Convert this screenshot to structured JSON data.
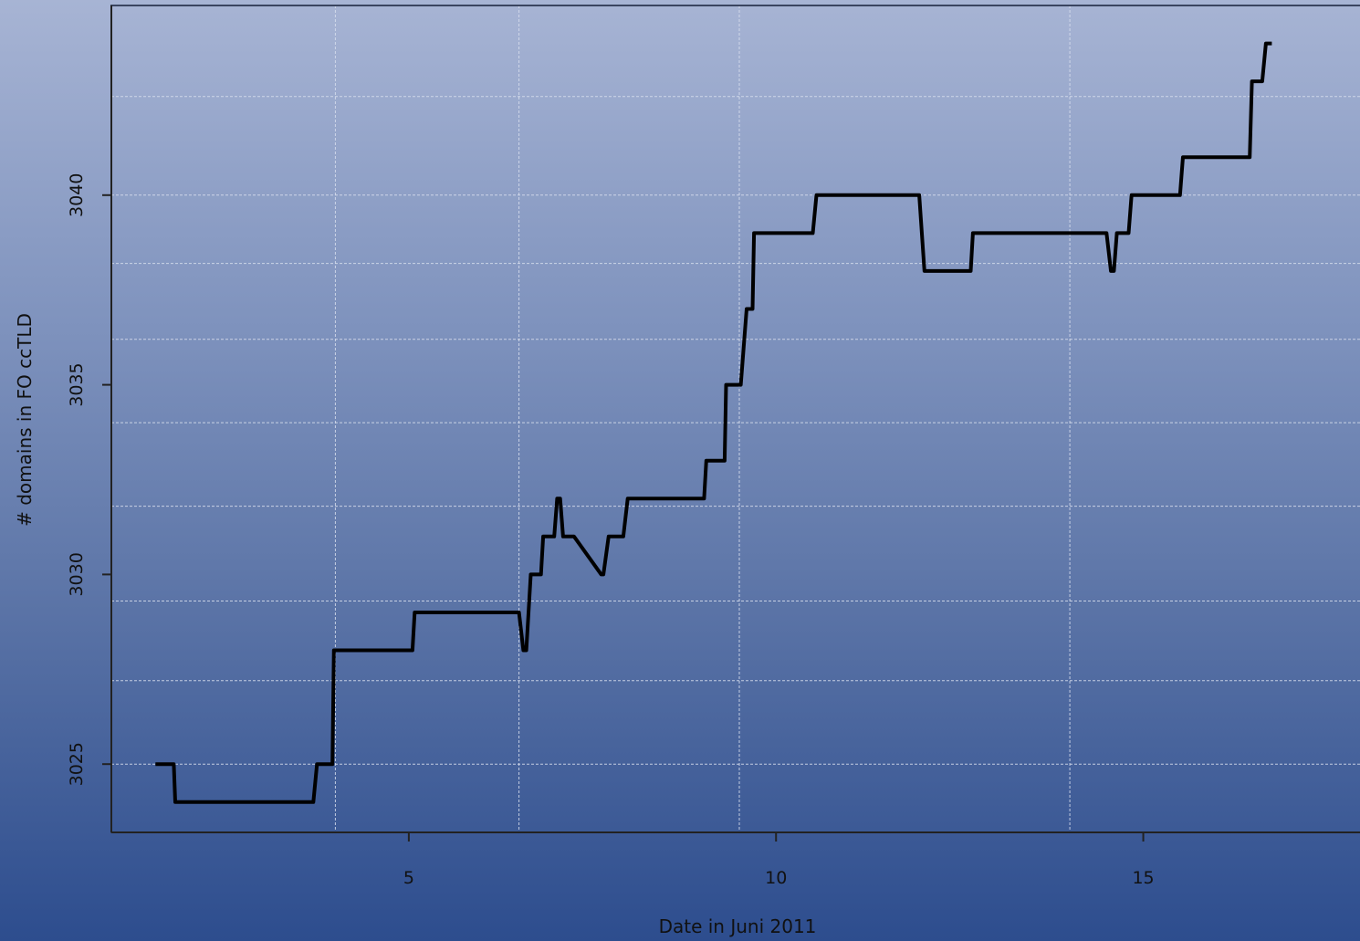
{
  "chart_data": {
    "type": "line",
    "title": "",
    "xlabel": "Date in Juni 2011",
    "ylabel": "# domains in FO ccTLD",
    "xlim": [
      0.95,
      18.1
    ],
    "ylim": [
      3023.2,
      3045
    ],
    "x_ticks": [
      5,
      10,
      15
    ],
    "y_ticks": [
      3025,
      3030,
      3035,
      3040
    ],
    "x_grid": [
      4,
      6.5,
      9.5,
      14
    ],
    "y_grid": [
      3025.0,
      3027.2,
      3029.3,
      3031.8,
      3034.0,
      3036.2,
      3038.2,
      3040.0,
      3042.6
    ],
    "grid": true,
    "series": [
      {
        "x": [
          1.55,
          1.8,
          1.82,
          3.7,
          3.75,
          3.96,
          3.98,
          5.05,
          5.08,
          6.5,
          6.56,
          6.6,
          6.66,
          6.8,
          6.83,
          6.98,
          7.02,
          7.06,
          7.1,
          7.25,
          7.62,
          7.65,
          7.72,
          7.76,
          7.92,
          7.98,
          8.05,
          9.02,
          9.05,
          9.3,
          9.32,
          9.52,
          9.6,
          9.68,
          9.7,
          10.5,
          10.55,
          11.95,
          12.02,
          12.65,
          12.68,
          14.5,
          14.56,
          14.6,
          14.64,
          14.8,
          14.84,
          15.5,
          15.54,
          16.45,
          16.48,
          16.62,
          16.67,
          16.75
        ],
        "y": [
          3025,
          3025,
          3024,
          3024,
          3025,
          3025,
          3028,
          3028,
          3029,
          3029,
          3028,
          3028,
          3030,
          3030,
          3031,
          3031,
          3032,
          3032,
          3031,
          3031,
          3030,
          3030,
          3031,
          3031,
          3031,
          3032,
          3032,
          3032,
          3033,
          3033,
          3035,
          3035,
          3037,
          3037,
          3039,
          3039,
          3040,
          3040,
          3038,
          3038,
          3039,
          3039,
          3038,
          3038,
          3039,
          3039,
          3040,
          3040,
          3041,
          3041,
          3043,
          3043,
          3044,
          3044
        ]
      }
    ]
  }
}
